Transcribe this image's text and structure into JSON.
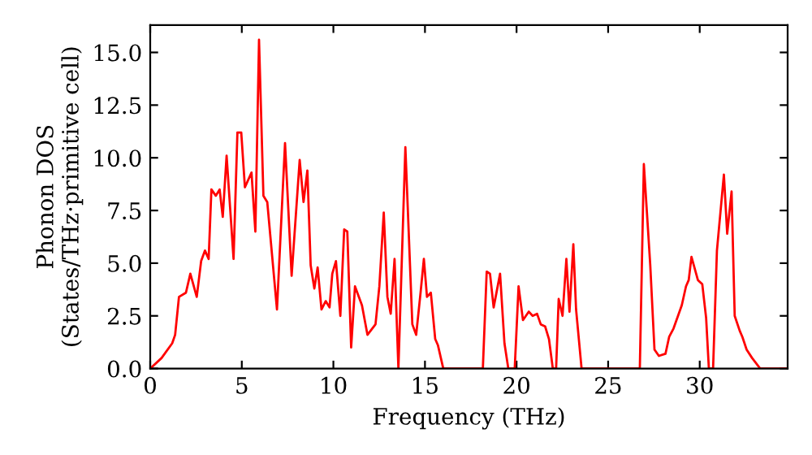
{
  "chart_data": {
    "type": "line",
    "xlabel": "Frequency (THz)",
    "ylabel": "Phonon DOS\n(States/THz·primitive cell)",
    "xlim": [
      0,
      34.8
    ],
    "ylim": [
      0,
      16.3
    ],
    "xticks": [
      0,
      5,
      10,
      15,
      20,
      25,
      30
    ],
    "yticks": [
      {
        "value": 0,
        "label": "0.0"
      },
      {
        "value": 2.5,
        "label": "2.5"
      },
      {
        "value": 5,
        "label": "5.0"
      },
      {
        "value": 7.5,
        "label": "7.5"
      },
      {
        "value": 10,
        "label": "10.0"
      },
      {
        "value": 12.5,
        "label": "12.5"
      },
      {
        "value": 15,
        "label": "15.0"
      }
    ],
    "grid": false,
    "marker": "none",
    "line_style": "solid",
    "series": [
      {
        "color": "#ff0000",
        "x": [
          0,
          0.62,
          1.2,
          1.36,
          1.57,
          1.95,
          2.19,
          2.54,
          2.78,
          2.99,
          3.19,
          3.34,
          3.58,
          3.79,
          3.96,
          4.17,
          4.55,
          4.76,
          4.97,
          5.17,
          5.53,
          5.74,
          5.94,
          6.18,
          6.39,
          6.92,
          7.36,
          7.72,
          8.16,
          8.37,
          8.58,
          8.76,
          8.96,
          9.14,
          9.35,
          9.58,
          9.79,
          9.94,
          10.14,
          10.38,
          10.59,
          10.76,
          10.97,
          11.18,
          11.56,
          11.86,
          12.3,
          12.51,
          12.75,
          12.95,
          13.13,
          13.34,
          13.55,
          13.93,
          14.31,
          14.52,
          14.76,
          14.94,
          15.11,
          15.32,
          15.56,
          15.71,
          16.0,
          18.16,
          18.37,
          18.55,
          18.75,
          19.1,
          19.34,
          19.55,
          19.9,
          20.11,
          20.35,
          20.67,
          20.88,
          21.12,
          21.32,
          21.56,
          21.77,
          21.98,
          22.16,
          22.3,
          22.51,
          22.72,
          22.89,
          23.1,
          23.25,
          23.55,
          26.73,
          26.95,
          27.3,
          27.53,
          27.77,
          28.13,
          28.33,
          28.57,
          29.02,
          29.25,
          29.4,
          29.55,
          29.9,
          30.14,
          30.35,
          30.5,
          30.73,
          30.94,
          31.32,
          31.5,
          31.74,
          31.91,
          32.18,
          32.33,
          32.56,
          32.86,
          33.3,
          34.8
        ],
        "values": [
          0,
          0.5,
          1.2,
          1.6,
          3.4,
          3.6,
          4.5,
          3.4,
          5.1,
          5.6,
          5.2,
          8.5,
          8.2,
          8.5,
          7.2,
          10.1,
          5.2,
          11.2,
          11.2,
          8.6,
          9.3,
          6.5,
          15.6,
          8.2,
          7.9,
          2.8,
          10.7,
          4.4,
          9.9,
          7.9,
          9.4,
          4.9,
          3.8,
          4.8,
          2.8,
          3.2,
          2.9,
          4.5,
          5.1,
          2.5,
          6.6,
          6.5,
          1.0,
          3.9,
          3.0,
          1.6,
          2.1,
          3.9,
          7.4,
          3.4,
          2.6,
          5.2,
          0,
          10.5,
          2.1,
          1.6,
          3.6,
          5.2,
          3.4,
          3.6,
          1.4,
          1.1,
          0,
          0,
          4.6,
          4.5,
          2.9,
          4.5,
          1.2,
          0,
          0,
          3.9,
          2.3,
          2.7,
          2.5,
          2.6,
          2.1,
          2.0,
          1.4,
          0,
          0,
          3.3,
          2.5,
          5.2,
          2.7,
          5.9,
          2.8,
          0,
          0,
          9.7,
          4.9,
          0.9,
          0.6,
          0.7,
          1.5,
          1.9,
          3.0,
          3.9,
          4.2,
          5.3,
          4.2,
          4.0,
          2.4,
          0,
          0,
          5.6,
          9.2,
          6.4,
          8.4,
          2.5,
          1.8,
          1.5,
          0.9,
          0.5,
          0,
          0
        ]
      }
    ]
  }
}
